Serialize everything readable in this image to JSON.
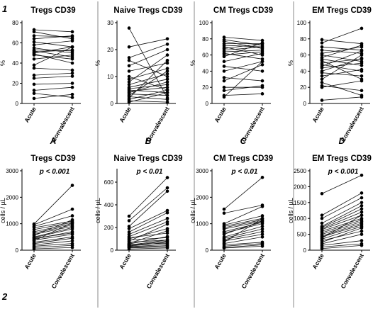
{
  "row_labels": [
    "1",
    "2"
  ],
  "x_groups": [
    "Acute",
    "Convalescent"
  ],
  "chart_data": [
    {
      "type": "scatter",
      "title": "Tregs CD39",
      "ylabel": "%",
      "letter": "A",
      "pvalue": "",
      "ylim": [
        0,
        80
      ],
      "yticks": [
        "0",
        "20",
        "40",
        "60",
        "80"
      ],
      "pairs": [
        [
          73,
          71
        ],
        [
          71,
          64
        ],
        [
          67,
          66
        ],
        [
          64,
          67
        ],
        [
          61,
          56
        ],
        [
          58,
          62
        ],
        [
          55,
          50
        ],
        [
          53,
          52
        ],
        [
          52,
          46
        ],
        [
          51,
          53
        ],
        [
          50,
          56
        ],
        [
          49,
          40
        ],
        [
          48,
          44
        ],
        [
          44,
          48
        ],
        [
          38,
          56
        ],
        [
          35,
          33
        ],
        [
          28,
          30
        ],
        [
          25,
          27
        ],
        [
          19,
          20
        ],
        [
          13,
          16
        ],
        [
          10,
          6
        ],
        [
          5,
          9
        ]
      ]
    },
    {
      "type": "scatter",
      "title": "Naive Tregs CD39",
      "ylabel": "%",
      "letter": "B",
      "pvalue": "",
      "ylim": [
        0,
        30
      ],
      "yticks": [
        "0",
        "10",
        "20",
        "30"
      ],
      "pairs": [
        [
          28,
          2
        ],
        [
          21,
          24
        ],
        [
          17,
          22
        ],
        [
          16,
          10
        ],
        [
          14,
          20
        ],
        [
          12,
          15
        ],
        [
          10,
          5
        ],
        [
          9,
          13
        ],
        [
          8,
          18
        ],
        [
          7,
          11
        ],
        [
          6,
          9
        ],
        [
          5.5,
          7
        ],
        [
          5,
          4
        ],
        [
          4.5,
          6
        ],
        [
          4,
          8
        ],
        [
          3.5,
          3
        ],
        [
          3,
          12
        ],
        [
          2.5,
          1.5
        ],
        [
          2,
          16
        ],
        [
          1.5,
          5
        ],
        [
          1,
          0.5
        ],
        [
          0.5,
          4
        ]
      ]
    },
    {
      "type": "scatter",
      "title": "CM Tregs CD39",
      "ylabel": "%",
      "letter": "C",
      "pvalue": "",
      "ylim": [
        0,
        100
      ],
      "yticks": [
        "0",
        "20",
        "40",
        "60",
        "80",
        "100"
      ],
      "pairs": [
        [
          82,
          78
        ],
        [
          79,
          72
        ],
        [
          77,
          68
        ],
        [
          74,
          74
        ],
        [
          72,
          70
        ],
        [
          70,
          60
        ],
        [
          68,
          74
        ],
        [
          66,
          70
        ],
        [
          64,
          66
        ],
        [
          62,
          55
        ],
        [
          60,
          64
        ],
        [
          58,
          75
        ],
        [
          52,
          62
        ],
        [
          46,
          40
        ],
        [
          40,
          52
        ],
        [
          32,
          28
        ],
        [
          28,
          48
        ],
        [
          20,
          20
        ],
        [
          16,
          22
        ],
        [
          10,
          12
        ],
        [
          8,
          52
        ]
      ]
    },
    {
      "type": "scatter",
      "title": "EM Tregs CD39",
      "ylabel": "%",
      "letter": "D",
      "pvalue": "",
      "ylim": [
        0,
        100
      ],
      "yticks": [
        "0",
        "20",
        "40",
        "60",
        "80",
        "100"
      ],
      "pairs": [
        [
          79,
          74
        ],
        [
          75,
          93
        ],
        [
          70,
          66
        ],
        [
          66,
          62
        ],
        [
          62,
          70
        ],
        [
          60,
          52
        ],
        [
          57,
          72
        ],
        [
          55,
          47
        ],
        [
          53,
          30
        ],
        [
          50,
          55
        ],
        [
          48,
          40
        ],
        [
          46,
          65
        ],
        [
          44,
          50
        ],
        [
          40,
          56
        ],
        [
          38,
          34
        ],
        [
          34,
          42
        ],
        [
          30,
          60
        ],
        [
          26,
          10
        ],
        [
          22,
          16
        ],
        [
          20,
          28
        ],
        [
          4,
          8
        ]
      ]
    },
    {
      "type": "scatter",
      "title": "Tregs CD39",
      "ylabel": "cells / µL",
      "letter": "",
      "pvalue": "p < 0.001",
      "ylim": [
        0,
        3000
      ],
      "yticks": [
        "0",
        "1000",
        "2000",
        "3000"
      ],
      "pairs": [
        [
          990,
          2450
        ],
        [
          960,
          1550
        ],
        [
          900,
          1300
        ],
        [
          850,
          1100
        ],
        [
          780,
          1050
        ],
        [
          700,
          1000
        ],
        [
          650,
          950
        ],
        [
          600,
          900
        ],
        [
          550,
          1150
        ],
        [
          500,
          850
        ],
        [
          480,
          800
        ],
        [
          450,
          650
        ],
        [
          420,
          700
        ],
        [
          380,
          600
        ],
        [
          350,
          1050
        ],
        [
          300,
          500
        ],
        [
          250,
          450
        ],
        [
          200,
          350
        ],
        [
          150,
          250
        ],
        [
          100,
          180
        ],
        [
          50,
          100
        ]
      ]
    },
    {
      "type": "scatter",
      "title": "Naive Tregs CD39",
      "ylabel": "cells / µL",
      "letter": "",
      "pvalue": "p < 0.01",
      "ylim": [
        0,
        700
      ],
      "yticks": [
        "0",
        "200",
        "400",
        "600"
      ],
      "pairs": [
        [
          300,
          640
        ],
        [
          260,
          550
        ],
        [
          210,
          520
        ],
        [
          190,
          350
        ],
        [
          160,
          330
        ],
        [
          140,
          280
        ],
        [
          120,
          250
        ],
        [
          110,
          150
        ],
        [
          100,
          190
        ],
        [
          90,
          110
        ],
        [
          80,
          230
        ],
        [
          70,
          90
        ],
        [
          60,
          170
        ],
        [
          55,
          120
        ],
        [
          50,
          60
        ],
        [
          45,
          90
        ],
        [
          40,
          80
        ],
        [
          35,
          70
        ],
        [
          30,
          50
        ],
        [
          25,
          40
        ],
        [
          20,
          30
        ],
        [
          10,
          20
        ]
      ]
    },
    {
      "type": "scatter",
      "title": "CM Tregs CD39",
      "ylabel": "cells / µL",
      "letter": "",
      "pvalue": "p < 0.01",
      "ylim": [
        0,
        3000
      ],
      "yticks": [
        "0",
        "1000",
        "2000",
        "3000"
      ],
      "pairs": [
        [
          1550,
          2750
        ],
        [
          1400,
          1700
        ],
        [
          1000,
          1650
        ],
        [
          950,
          1300
        ],
        [
          900,
          1200
        ],
        [
          850,
          1150
        ],
        [
          800,
          1100
        ],
        [
          700,
          1050
        ],
        [
          650,
          1000
        ],
        [
          600,
          1100
        ],
        [
          500,
          900
        ],
        [
          450,
          800
        ],
        [
          400,
          700
        ],
        [
          350,
          600
        ],
        [
          300,
          1200
        ],
        [
          250,
          500
        ],
        [
          200,
          300
        ],
        [
          150,
          250
        ],
        [
          100,
          200
        ],
        [
          80,
          150
        ]
      ]
    },
    {
      "type": "scatter",
      "title": "EM Tregs CD39",
      "ylabel": "cells / µL",
      "letter": "",
      "pvalue": "p < 0.001",
      "ylim": [
        0,
        2500
      ],
      "yticks": [
        "0",
        "500",
        "1000",
        "1500",
        "2000",
        "2500"
      ],
      "pairs": [
        [
          1780,
          2360
        ],
        [
          1100,
          1800
        ],
        [
          1000,
          1650
        ],
        [
          850,
          1500
        ],
        [
          750,
          1400
        ],
        [
          720,
          1300
        ],
        [
          680,
          1200
        ],
        [
          650,
          1100
        ],
        [
          600,
          1000
        ],
        [
          550,
          950
        ],
        [
          500,
          900
        ],
        [
          450,
          850
        ],
        [
          420,
          800
        ],
        [
          380,
          1100
        ],
        [
          350,
          750
        ],
        [
          300,
          600
        ],
        [
          250,
          700
        ],
        [
          200,
          500
        ],
        [
          150,
          300
        ],
        [
          100,
          200
        ],
        [
          50,
          150
        ]
      ]
    }
  ]
}
